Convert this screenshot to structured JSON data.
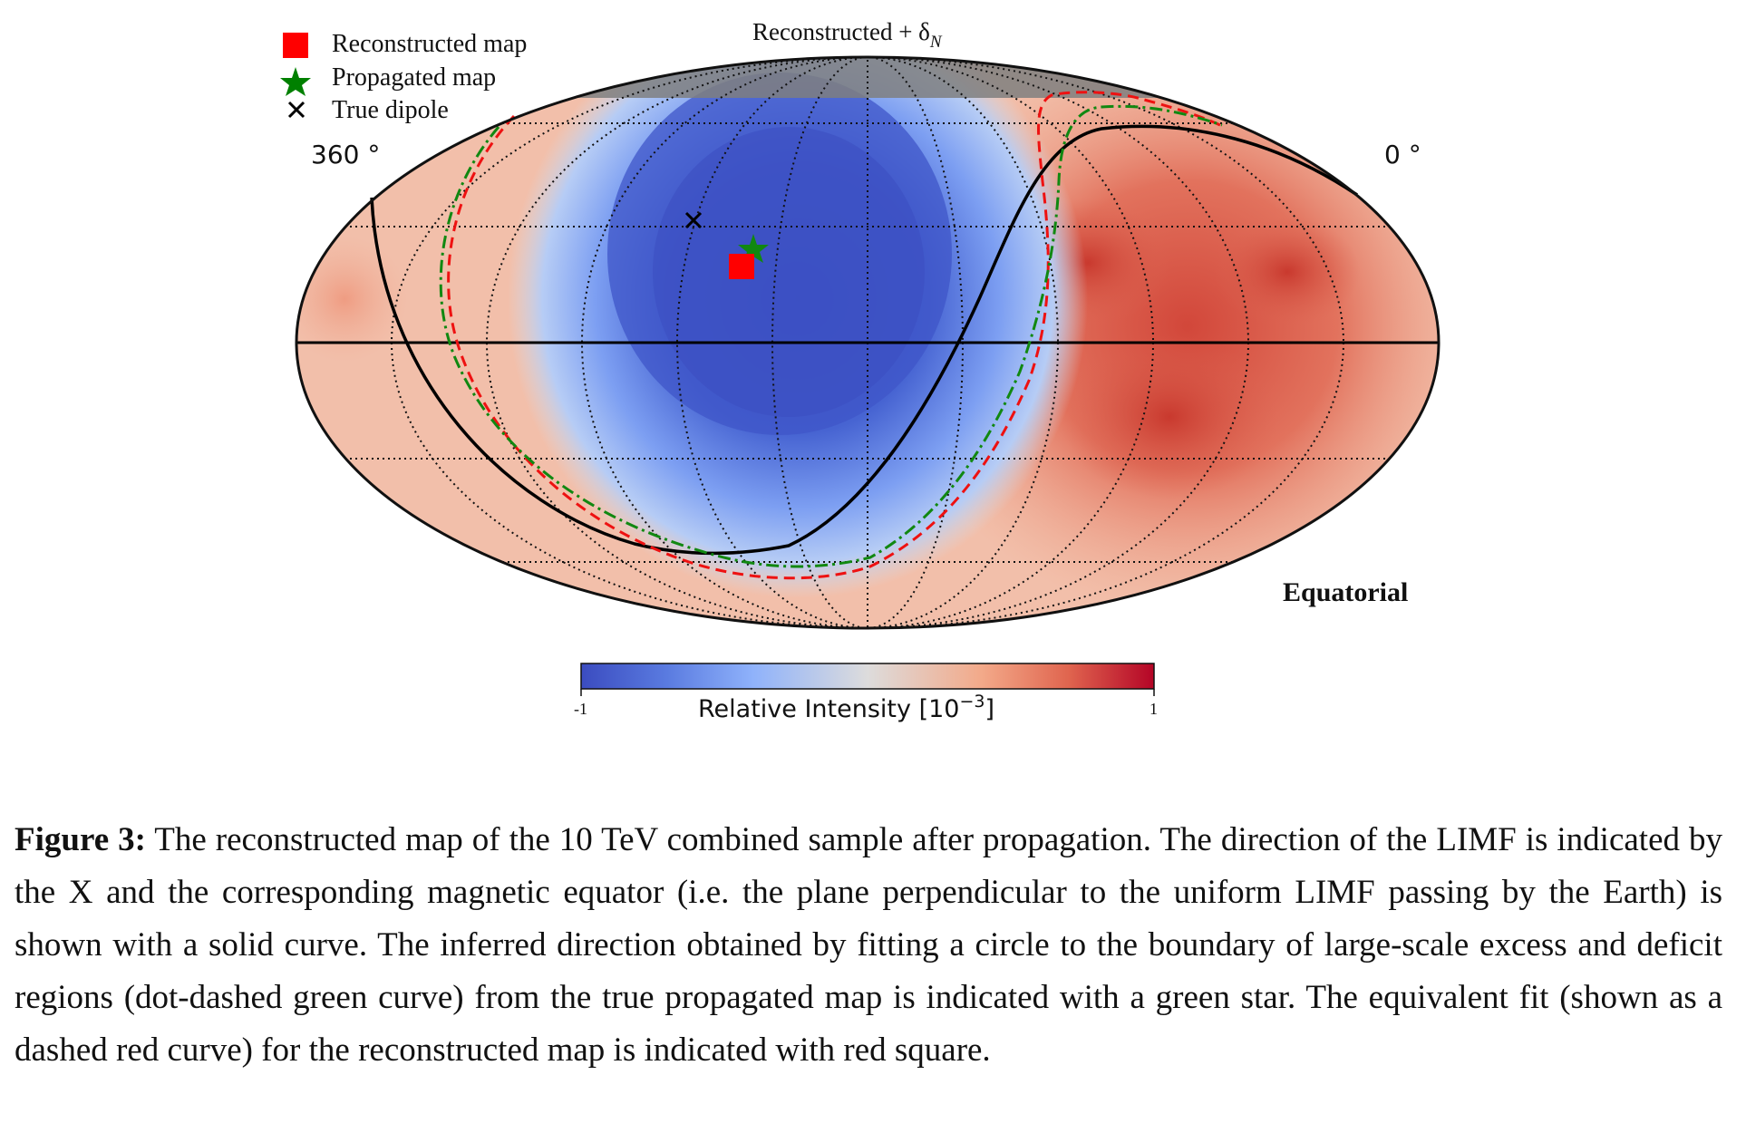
{
  "figure": {
    "title": "Reconstructed + δ",
    "title_subscript": "N",
    "frame_label": "Equatorial",
    "left_ra_label": "360 °",
    "right_ra_label": "0 °",
    "legend": [
      {
        "label": "Reconstructed map",
        "marker": "red-square-icon",
        "color": "#ff0000"
      },
      {
        "label": "Propagated map",
        "marker": "green-star-icon",
        "color": "#008000"
      },
      {
        "label": "True dipole",
        "marker": "black-x-icon",
        "color": "#000000"
      }
    ],
    "colorbar": {
      "label": "Relative Intensity [10",
      "label_exp": "−3",
      "label_end": "]",
      "min_label": "-1",
      "max_label": "1",
      "colormap": "coolwarm",
      "range": [
        -1,
        1
      ]
    },
    "projection": "mollweide",
    "colors": {
      "deficit": "#3b4cc0",
      "excess": "#d7574b",
      "neutral": "#dcdddd",
      "masked": "#808080",
      "magnetic_equator": "#000000",
      "fit_reconstructed": "#ee1111",
      "fit_propagated": "#118811"
    }
  },
  "caption": {
    "label": "Figure 3:",
    "text": " The reconstructed map of the 10 TeV combined sample after propagation. The direction of the LIMF is indicated by the X and the corresponding magnetic equator (i.e. the plane perpendicular to the uniform LIMF passing by the Earth) is shown with a solid curve. The inferred direction obtained by fitting a circle to the boundary of large-scale excess and deficit regions (dot-dashed green curve) from the true propagated map is indicated with a green star. The equivalent fit (shown as a dashed red curve) for the reconstructed map is indicated with red square."
  }
}
